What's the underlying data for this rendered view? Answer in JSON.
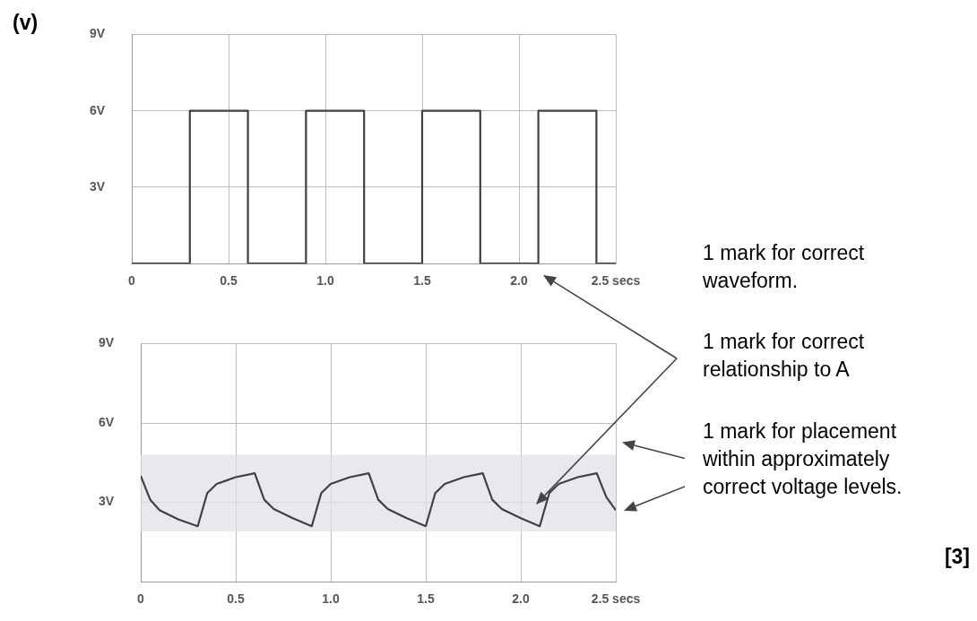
{
  "chart_data": [
    {
      "type": "step",
      "annotations": [
        "(v)",
        "1 mark for correct waveform.",
        "1 mark for correct relationship to A"
      ],
      "x": [
        0,
        0.3,
        0.6,
        0.9,
        1.2,
        1.5,
        1.8,
        2.1,
        2.4,
        2.5
      ],
      "values": [
        0,
        6,
        0,
        6,
        0,
        6,
        0,
        6,
        0,
        0
      ],
      "color": "#404040",
      "xlim": [
        0,
        2.5
      ],
      "xticks": [
        0,
        0.5,
        {
          "value": 1,
          "label": "1.0"
        },
        1.5,
        {
          "value": 2,
          "label": "2.0"
        },
        {
          "value": 2.5,
          "label": "2.5 secs"
        }
      ],
      "ylim": [
        0,
        9
      ],
      "yticks": [
        {
          "value": 0,
          "label": null
        },
        {
          "value": 3,
          "label": "3V"
        },
        {
          "value": 6,
          "label": "6V"
        },
        {
          "value": 9,
          "label": "9V"
        }
      ],
      "grid": true
    },
    {
      "type": "line",
      "annotations": [
        "1 mark for placement within approximately correct voltage levels.",
        "[3]"
      ],
      "x": [
        0,
        0.05,
        0.1,
        0.2,
        0.3,
        0.35,
        0.4,
        0.5,
        0.6,
        0.65,
        0.7,
        0.8,
        0.9,
        0.95,
        1.0,
        1.1,
        1.2,
        1.25,
        1.3,
        1.4,
        1.5,
        1.55,
        1.6,
        1.7,
        1.8,
        1.85,
        1.9,
        2.0,
        2.1,
        2.15,
        2.2,
        2.3,
        2.4,
        2.45,
        2.5
      ],
      "values": [
        4.0,
        3.1,
        2.7,
        2.35,
        2.1,
        3.35,
        3.7,
        3.95,
        4.1,
        3.1,
        2.75,
        2.4,
        2.1,
        3.35,
        3.7,
        3.95,
        4.1,
        3.1,
        2.75,
        2.4,
        2.1,
        3.35,
        3.7,
        3.95,
        4.1,
        3.1,
        2.75,
        2.4,
        2.1,
        3.35,
        3.7,
        3.95,
        4.1,
        3.2,
        2.7
      ],
      "color": "#404040",
      "bands": [
        {
          "axis": "y",
          "from": 1.9,
          "to": 4.8,
          "color": "#e4dfea"
        }
      ],
      "xlim": [
        0,
        2.5
      ],
      "xticks": [
        0,
        0.5,
        {
          "value": 1,
          "label": "1.0"
        },
        1.5,
        {
          "value": 2,
          "label": "2.0"
        },
        {
          "value": 2.5,
          "label": "2.5 secs"
        }
      ],
      "ylim": [
        0,
        9
      ],
      "yticks": [
        {
          "value": 0,
          "label": null
        },
        {
          "value": 3,
          "label": "3V"
        },
        {
          "value": 6,
          "label": "6V"
        },
        {
          "value": 9,
          "label": "9V"
        }
      ],
      "grid": true
    }
  ]
}
